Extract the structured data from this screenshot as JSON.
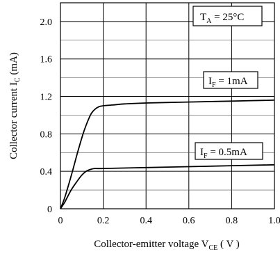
{
  "chart_data": {
    "type": "line",
    "xlabel": {
      "main": "Collector-emitter voltage V",
      "sub": "CE",
      "unit": " ( V )"
    },
    "ylabel": {
      "main": "Collector current I",
      "sub": "C",
      "unit": " (mA)"
    },
    "xlim": [
      0,
      1.0
    ],
    "ylim": [
      0,
      2.2
    ],
    "xticks": [
      0,
      0.2,
      0.4,
      0.6,
      0.8,
      1.0
    ],
    "xtick_labels": [
      "0",
      "0.2",
      "0.4",
      "0.6",
      "0.8",
      "1.0"
    ],
    "yticks": [
      0,
      0.4,
      0.8,
      1.2,
      1.6,
      2.0
    ],
    "ytick_labels": [
      "0",
      "0.4",
      "0.8",
      "1.2",
      "1.6",
      "2.0"
    ],
    "y_minor_grid": [
      0.2,
      0.6,
      1.0,
      1.4,
      1.8,
      2.2
    ],
    "grid": true,
    "annotation": {
      "main": "T",
      "sub": "A",
      "rest": "  = 25°C"
    },
    "series": [
      {
        "name": {
          "main": "I",
          "sub": "F",
          "rest": " = 1mA"
        },
        "x": [
          0,
          0.02,
          0.05,
          0.08,
          0.11,
          0.14,
          0.16,
          0.18,
          0.2,
          0.25,
          0.3,
          0.4,
          0.6,
          0.8,
          1.0
        ],
        "y": [
          0,
          0.12,
          0.35,
          0.6,
          0.83,
          1.0,
          1.06,
          1.09,
          1.1,
          1.11,
          1.12,
          1.13,
          1.14,
          1.15,
          1.16
        ]
      },
      {
        "name": {
          "main": "I",
          "sub": "F",
          "rest": " = 0.5mA"
        },
        "x": [
          0,
          0.02,
          0.05,
          0.08,
          0.1,
          0.12,
          0.14,
          0.16,
          0.2,
          0.4,
          0.6,
          0.8,
          1.0
        ],
        "y": [
          0,
          0.07,
          0.2,
          0.3,
          0.36,
          0.4,
          0.42,
          0.43,
          0.43,
          0.44,
          0.45,
          0.46,
          0.47
        ]
      }
    ],
    "colors": {
      "line": "#000000",
      "grid": "#000000"
    }
  }
}
